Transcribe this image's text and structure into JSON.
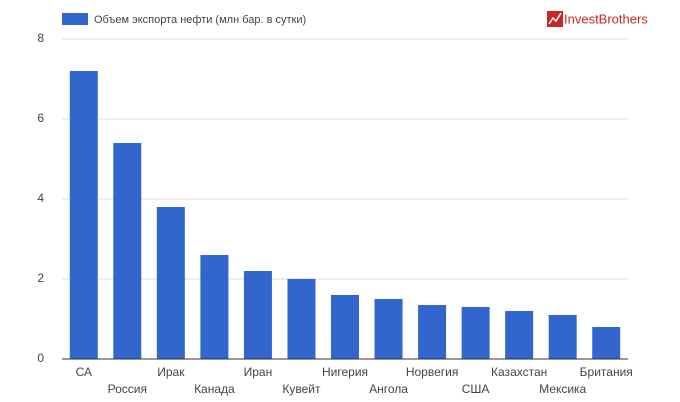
{
  "chart_data": {
    "type": "bar",
    "logo": "InvestBrothers",
    "categories": [
      "СА",
      "Россия",
      "Ирак",
      "Канада",
      "Иран",
      "Кувейт",
      "Нигерия",
      "Ангола",
      "Норвегия",
      "США",
      "Казахстан",
      "Мексика",
      "Британия"
    ],
    "series": [
      {
        "name": "Объем экспорта нефти (млн бар. в сутки)",
        "color": "#3366cc",
        "values": [
          7.2,
          5.4,
          3.8,
          2.6,
          2.2,
          2.0,
          1.6,
          1.5,
          1.35,
          1.3,
          1.2,
          1.1,
          0.8
        ]
      }
    ],
    "ylim": [
      0,
      8
    ],
    "yticks": [
      0,
      2,
      4,
      6,
      8
    ],
    "grid": true,
    "legend": "top"
  }
}
